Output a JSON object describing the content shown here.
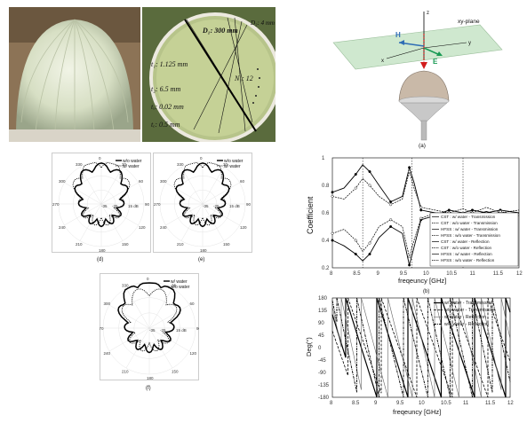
{
  "photos": {
    "left": {
      "caption": ""
    },
    "right": {
      "labels": {
        "D1": "D₁: 300 mm",
        "D2": "D₂: 4 mm",
        "N1": "N₁: 12",
        "t1": "t₁: 1.125 mm",
        "t2": "t₂: 6.5 mm",
        "tc": "tₓ: 0.02 mm",
        "tf": "tₑ: 0.5 mm"
      }
    }
  },
  "schematic": {
    "caption": "(a)",
    "plane_label": "xy-plane",
    "axes": {
      "z": "z",
      "x": "x",
      "y": "y"
    },
    "fields": {
      "H": "H",
      "E": "E"
    },
    "colors": {
      "plane": "#cfe8cf",
      "H": "#2f6db5",
      "E": "#1a9a55",
      "k": "#d21c1c"
    }
  },
  "polar_plots": [
    {
      "caption": "(d)",
      "legend": [
        "w/o water",
        "w/ water"
      ],
      "angle_labels": [
        "0",
        "30",
        "60",
        "90",
        "120",
        "150",
        "180",
        "210",
        "240",
        "270",
        "300",
        "330"
      ],
      "radial_labels": [
        "-35",
        "-25",
        "15 dB"
      ]
    },
    {
      "caption": "(e)",
      "legend": [
        "w/o water",
        "w/ water"
      ],
      "angle_labels": [
        "0",
        "30",
        "60",
        "90",
        "120",
        "150",
        "180",
        "210",
        "240",
        "270",
        "300",
        "330"
      ],
      "radial_labels": [
        "-35",
        "-25",
        "15 dB"
      ]
    },
    {
      "caption": "(f)",
      "legend": [
        "w/ water",
        "w/o water"
      ],
      "angle_labels": [
        "0",
        "30",
        "60",
        "90",
        "120",
        "150",
        "180",
        "210",
        "240",
        "270",
        "300",
        "330"
      ],
      "radial_labels": [
        "-35",
        "-25",
        "15 dB"
      ]
    }
  ],
  "chart_data": [
    {
      "type": "line",
      "caption": "(b)",
      "xlabel": "freqeuncy [GHz]",
      "ylabel": "Coefficient",
      "xlim": [
        8,
        12
      ],
      "ylim": [
        0.2,
        1
      ],
      "xticks": [
        "8",
        "8.5",
        "9",
        "9.5",
        "10",
        "10.5",
        "11",
        "11.5",
        "12"
      ],
      "yticks": [
        "0.2",
        "0.4",
        "0.6",
        "0.8",
        "1"
      ],
      "vlines": [
        8.65,
        9.7,
        10.8
      ],
      "legend": [
        "CST : w/ water - Transmission",
        "CST : w/o water - Transmission",
        "HFSS : w/ water - Transmission",
        "HFSS : w/o water - Transmission",
        "CST : w/ water - Reflection",
        "CST : w/o water - Reflection",
        "HFSS : w/ water - Reflection",
        "HFSS : w/o water - Reflection"
      ],
      "series": [
        {
          "x": [
            8,
            8.25,
            8.5,
            8.65,
            8.8,
            9,
            9.25,
            9.5,
            9.65,
            9.75,
            9.9,
            10.2,
            10.5,
            10.8,
            11,
            11.3,
            11.6,
            12
          ],
          "values": [
            0.75,
            0.78,
            0.88,
            0.95,
            0.9,
            0.8,
            0.68,
            0.72,
            0.93,
            0.82,
            0.62,
            0.6,
            0.58,
            0.6,
            0.62,
            0.6,
            0.62,
            0.6
          ]
        },
        {
          "x": [
            8,
            8.25,
            8.5,
            8.65,
            8.8,
            9,
            9.25,
            9.5,
            9.65,
            9.75,
            9.9,
            10.2,
            10.5,
            10.8,
            11,
            11.3,
            11.6,
            12
          ],
          "values": [
            0.72,
            0.7,
            0.78,
            0.85,
            0.8,
            0.72,
            0.66,
            0.7,
            0.9,
            0.78,
            0.64,
            0.62,
            0.6,
            0.63,
            0.6,
            0.64,
            0.6,
            0.62
          ]
        },
        {
          "x": [
            8,
            8.25,
            8.5,
            8.65,
            8.8,
            9,
            9.25,
            9.5,
            9.65,
            9.75,
            9.9,
            10.2,
            10.5,
            10.8,
            11,
            11.3,
            11.6,
            12
          ],
          "values": [
            0.4,
            0.36,
            0.3,
            0.25,
            0.3,
            0.42,
            0.5,
            0.45,
            0.22,
            0.35,
            0.55,
            0.58,
            0.62,
            0.6,
            0.58,
            0.61,
            0.58,
            0.6
          ]
        },
        {
          "x": [
            8,
            8.25,
            8.5,
            8.65,
            8.8,
            9,
            9.25,
            9.5,
            9.65,
            9.75,
            9.9,
            10.2,
            10.5,
            10.8,
            11,
            11.3,
            11.6,
            12
          ],
          "values": [
            0.45,
            0.48,
            0.4,
            0.32,
            0.38,
            0.5,
            0.55,
            0.5,
            0.28,
            0.4,
            0.56,
            0.6,
            0.6,
            0.57,
            0.6,
            0.57,
            0.61,
            0.58
          ]
        }
      ]
    },
    {
      "type": "line",
      "caption": "",
      "xlabel": "freqeuncy [GHz]",
      "ylabel": "Deg(°)",
      "xlim": [
        8,
        12
      ],
      "ylim": [
        -180,
        180
      ],
      "xticks": [
        "8",
        "8.5",
        "9",
        "9.5",
        "10",
        "10.5",
        "11",
        "11.5",
        "12"
      ],
      "yticks": [
        "180",
        "135",
        "90",
        "45",
        "0",
        "-45",
        "-90",
        "-135",
        "-180"
      ],
      "legend": [
        "w/ water - Transmission",
        "w/o water - Transmission",
        "w/ water - Reflection",
        "w/o water - Reflection"
      ],
      "series": [
        {
          "wrap_points": [
            8.3,
            9.0,
            9.7,
            10.45,
            11.2,
            11.9
          ],
          "start": 120,
          "slope": -520
        },
        {
          "wrap_points": [
            8.35,
            9.1,
            9.9,
            10.7,
            11.5
          ],
          "start": 60,
          "slope": -460
        },
        {
          "wrap_points": [
            8.2,
            8.65,
            9.25,
            9.8,
            10.3,
            10.85,
            11.35,
            11.8
          ],
          "start": 150,
          "slope": -740
        },
        {
          "wrap_points": [
            8.1,
            8.55,
            9.05,
            9.6,
            10.15,
            10.65,
            11.15,
            11.6
          ],
          "start": 170,
          "slope": -760
        }
      ]
    }
  ]
}
